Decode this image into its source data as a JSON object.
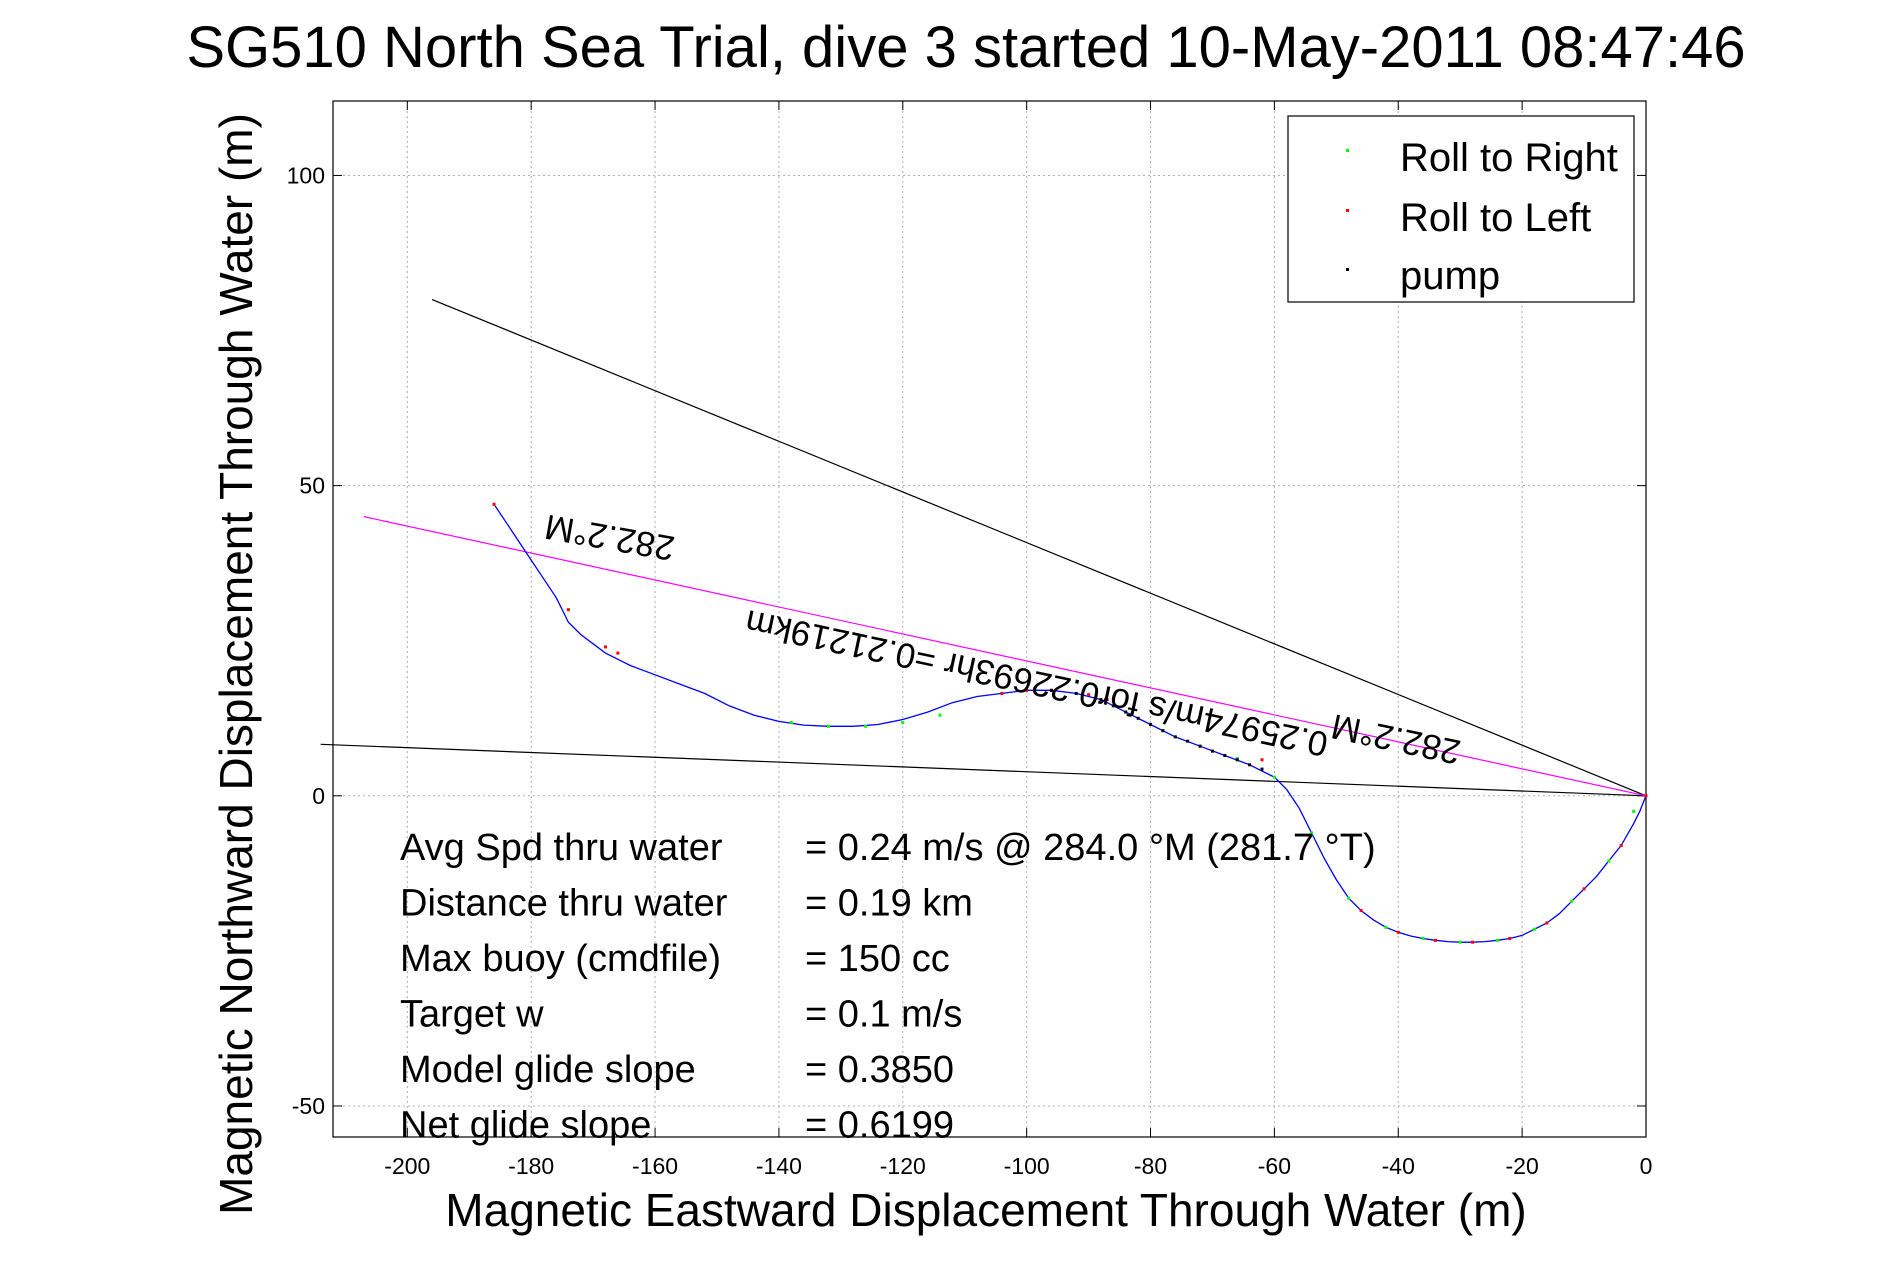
{
  "chart_data": {
    "type": "line",
    "title": "SG510 North Sea Trial, dive 3 started 10-May-2011 08:47:46",
    "xlabel": "Magnetic Eastward Displacement Through Water (m)",
    "ylabel": "Magnetic Northward Displacement Through Water (m)",
    "xlim": [
      -212,
      0
    ],
    "ylim": [
      -55,
      112
    ],
    "xticks": [
      -200,
      -180,
      -160,
      -140,
      -120,
      -100,
      -80,
      -60,
      -40,
      -20,
      0
    ],
    "yticks": [
      -50,
      0,
      50,
      100
    ],
    "xtick_labels": [
      "-200",
      "-180",
      "-160",
      "-140",
      "-120",
      "-100",
      "-80",
      "-60",
      "-40",
      "-20",
      "0"
    ],
    "ytick_labels": [
      "-50",
      "0",
      "50",
      "100"
    ],
    "grid": true,
    "legend": {
      "placement": "top-right",
      "entries": [
        {
          "label": "Roll to Right",
          "color": "#00ff00"
        },
        {
          "label": "Roll to Left",
          "color": "#ff0000"
        },
        {
          "label": "pump",
          "color": "#000000"
        }
      ]
    },
    "track": {
      "color": "#0000ff",
      "x": [
        -186,
        -184,
        -182,
        -180,
        -178,
        -176,
        -175,
        -174,
        -172,
        -170,
        -168,
        -166,
        -164,
        -160,
        -156,
        -152,
        -148,
        -144,
        -140,
        -136,
        -132,
        -128,
        -124,
        -120,
        -116,
        -112,
        -108,
        -104,
        -100,
        -96,
        -92,
        -88,
        -84,
        -80,
        -76,
        -72,
        -68,
        -64,
        -60,
        -58,
        -56,
        -54,
        -52,
        -50,
        -48,
        -46,
        -44,
        -42,
        -40,
        -38,
        -36,
        -34,
        -32,
        -30,
        -28,
        -26,
        -24,
        -22,
        -20,
        -18,
        -16,
        -14,
        -12,
        -10,
        -8,
        -6,
        -4,
        -2,
        -1,
        0
      ],
      "y": [
        47,
        44,
        41,
        38,
        35,
        32,
        30,
        28,
        26,
        24.5,
        23,
        22,
        21,
        19.5,
        18,
        16.5,
        14.5,
        13,
        12,
        11.4,
        11.2,
        11.2,
        11.5,
        12.3,
        13.5,
        15,
        16,
        16.5,
        17,
        17,
        16.5,
        15.5,
        13.5,
        11.5,
        9.5,
        8,
        6.5,
        5,
        3,
        1,
        -2,
        -6,
        -10,
        -13.5,
        -16.5,
        -18.5,
        -20,
        -21.2,
        -22,
        -22.6,
        -23,
        -23.3,
        -23.5,
        -23.6,
        -23.6,
        -23.5,
        -23.3,
        -23,
        -22.5,
        -21.5,
        -20.5,
        -19,
        -17,
        -15,
        -13,
        -10.5,
        -8,
        -4.5,
        -2.5,
        0
      ]
    },
    "roll_right_points": {
      "x": [
        -138,
        -132,
        -126,
        -120,
        -114,
        -84,
        -78,
        -72,
        -66,
        -60,
        -54,
        -48,
        -42,
        -36,
        -30,
        -24,
        -18,
        -12,
        -6,
        -2
      ],
      "y": [
        11.8,
        11.2,
        11.2,
        11.8,
        13,
        13.5,
        10.5,
        8,
        6,
        3,
        -6,
        -16.5,
        -21.2,
        -23,
        -23.6,
        -23.3,
        -21.5,
        -17,
        -10.5,
        -2.5
      ]
    },
    "roll_left_points": {
      "x": [
        -186,
        -174,
        -168,
        -166,
        -104,
        -100,
        -96,
        -90,
        -87,
        -62,
        -46,
        -40,
        -34,
        -28,
        -22,
        -16,
        -10,
        -4,
        0
      ],
      "y": [
        47,
        30,
        24,
        23,
        16.5,
        17,
        17,
        16.3,
        15.5,
        5.8,
        -18.5,
        -22,
        -23.3,
        -23.6,
        -23,
        -20.5,
        -15,
        -8,
        0
      ]
    },
    "pump_points": {
      "x": [
        -96,
        -92,
        -88,
        -86,
        -84,
        -82,
        -80,
        -78,
        -76,
        -74,
        -72,
        -70,
        -68,
        -66,
        -64,
        -62
      ],
      "y": [
        17,
        16.5,
        15.5,
        14.5,
        13.5,
        12.5,
        11.5,
        10.5,
        9.5,
        8.8,
        8,
        7.2,
        6.5,
        5.8,
        5,
        4.3
      ]
    },
    "reference_lines": [
      {
        "color": "#000000",
        "x": [
          -196,
          0
        ],
        "y": [
          80,
          0
        ]
      },
      {
        "color": "#000000",
        "x": [
          -214,
          0
        ],
        "y": [
          8.3,
          0
        ]
      },
      {
        "color": "#ff00ff",
        "x": [
          -207,
          0
        ],
        "y": [
          45,
          0
        ]
      }
    ],
    "annotations": [
      {
        "text": "282.2°M",
        "x": -167,
        "y": 43.5,
        "angle": 190
      },
      {
        "text": "0.25974m/s for0.22693hr =0.21219km",
        "x": -98,
        "y": 20,
        "angle": 192
      },
      {
        "text": "282.2°M",
        "x": -40,
        "y": 11,
        "angle": 192
      }
    ],
    "stats": [
      {
        "label": "Avg Spd thru water",
        "value": "=  0.24 m/s @ 284.0 °M (281.7 °T)"
      },
      {
        "label": "Distance thru water",
        "value": "=  0.19 km"
      },
      {
        "label": "Max buoy (cmdfile)",
        "value": "= 150 cc"
      },
      {
        "label": "Target w",
        "value": "= 0.1 m/s"
      },
      {
        "label": "Model glide slope",
        "value": "= 0.3850"
      },
      {
        "label": "Net glide slope",
        "value": "= 0.6199"
      }
    ]
  }
}
